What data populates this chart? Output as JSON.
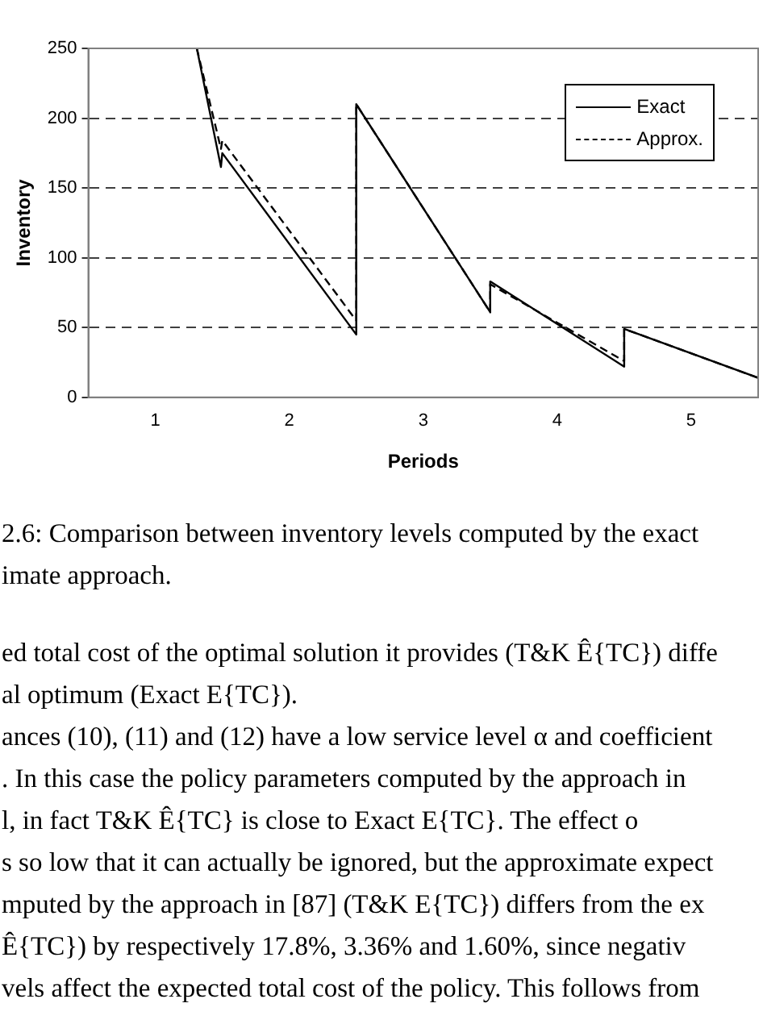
{
  "chart_data": {
    "type": "line",
    "xlabel": "Periods",
    "ylabel": "Inventory",
    "xlim": [
      0.5,
      5.5
    ],
    "xticks": [
      1,
      2,
      3,
      4,
      5
    ],
    "ylim": [
      0,
      250
    ],
    "yticks": [
      0,
      50,
      100,
      150,
      200,
      250
    ],
    "grid": "y",
    "legend": "top right",
    "marker": "none",
    "series": [
      {
        "name": "Exact",
        "color": "#000000",
        "line_style": "solid",
        "x": [
          1.31,
          1.49,
          1.5,
          2.5,
          2.5,
          3.5,
          3.5,
          4.5,
          4.5,
          5.5
        ],
        "values": [
          250,
          165,
          175,
          45,
          210,
          61,
          83,
          22,
          49,
          14
        ]
      },
      {
        "name": "Approx.",
        "color": "#000000",
        "line_style": "dashed",
        "x": [
          1.31,
          1.49,
          1.5,
          2.5,
          2.5,
          3.5,
          3.5,
          4.5,
          4.5,
          5.5
        ],
        "values": [
          250,
          178,
          184,
          55,
          210,
          61,
          81,
          26,
          49,
          14
        ]
      }
    ],
    "annotations": [
      "2.6: Comparison between inventory levels computed by the exact",
      "imate approach.",
      "ed total cost of the optimal solution it provides (T&K Ê{TC}) diffe",
      "al optimum (Exact E{TC}).",
      "ances (10), (11) and (12) have a low service level α and coefficient",
      ". In this case the policy parameters computed by the approach in",
      "l, in fact T&K Ê{TC} is close to Exact E{TC}.  The effect o",
      "s so low that it can actually be ignored, but the approximate expect",
      "mputed by the approach in [87] (T&K E{TC}) differs from the ex",
      "Ê{TC}) by respectively 17.8%, 3.36% and 1.60%, since negativ",
      "vels affect the expected total cost of the policy. This follows from"
    ]
  }
}
